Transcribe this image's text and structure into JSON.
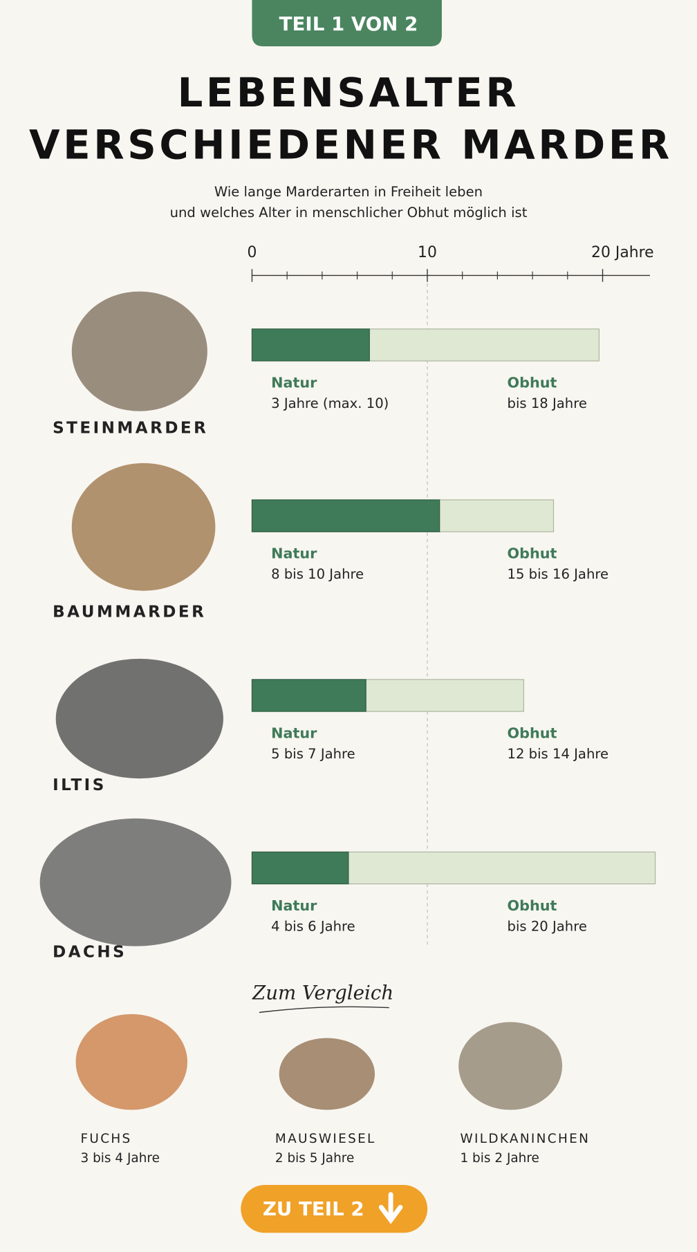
{
  "header": {
    "tab": "TEIL 1 VON 2",
    "title": [
      "LEBENSALTER",
      "VERSCHIEDENER MARDER"
    ],
    "subtitle": [
      "Wie lange Marderarten in Freiheit leben",
      "und welches Alter in menschlicher Obhut möglich ist"
    ]
  },
  "chart": {
    "xlim": [
      0,
      22.7
    ],
    "xticks": [
      0,
      10,
      {
        "value": 20,
        "label": "20 Jahre"
      }
    ],
    "minor_ticks": [
      2,
      4,
      6,
      8,
      12,
      14,
      16,
      18
    ],
    "natur_color": "#3f7a59",
    "obhut_color": "#dfe8d3",
    "species": [
      {
        "name": "STEINMARDER",
        "natur_label": "Natur",
        "natur_text": "3 Jahre (max. 10)",
        "obhut_label": "Obhut",
        "obhut_text": "bis 18 Jahre",
        "natur": 6.7,
        "obhut": 19.8
      },
      {
        "name": "BAUMMARDER",
        "natur_label": "Natur",
        "natur_text": "8 bis 10 Jahre",
        "obhut_label": "Obhut",
        "obhut_text": "15 bis 16 Jahre",
        "natur": 10.7,
        "obhut": 17.2
      },
      {
        "name": "ILTIS",
        "natur_label": "Natur",
        "natur_text": "5 bis 7 Jahre",
        "obhut_label": "Obhut",
        "obhut_text": "12 bis 14 Jahre",
        "natur": 6.5,
        "obhut": 15.5
      },
      {
        "name": "DACHS",
        "natur_label": "Natur",
        "natur_text": "4 bis 6 Jahre",
        "obhut_label": "Obhut",
        "obhut_text": "bis 20 Jahre",
        "natur": 5.5,
        "obhut": 23
      }
    ]
  },
  "comparison": {
    "title": "Zum Vergleich",
    "items": [
      {
        "name": "FUCHS",
        "text": "3 bis 4 Jahre"
      },
      {
        "name": "MAUSWIESEL",
        "text": "2 bis 5 Jahre"
      },
      {
        "name": "WILDKANINCHEN",
        "text": "1 bis 2 Jahre"
      }
    ]
  },
  "button": {
    "label": "ZU TEIL 2"
  }
}
